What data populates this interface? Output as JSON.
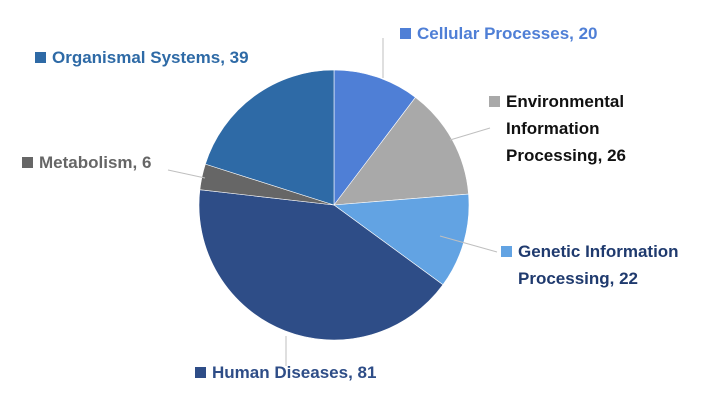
{
  "chart_data": {
    "type": "pie",
    "values": [
      20,
      26,
      22,
      81,
      6,
      39
    ],
    "value_labels": [
      "Cellular Processes, 20",
      "Environmental Information Processing, 26",
      "Genetic Information Processing, 22",
      "Human Diseases, 81",
      "Metabolism, 6",
      "Organismal Systems, 39"
    ],
    "colors": [
      "#4f7fd6",
      "#a9a9a9",
      "#62a3e3",
      "#2e4d87",
      "#666666",
      "#2e6aa6"
    ]
  }
}
